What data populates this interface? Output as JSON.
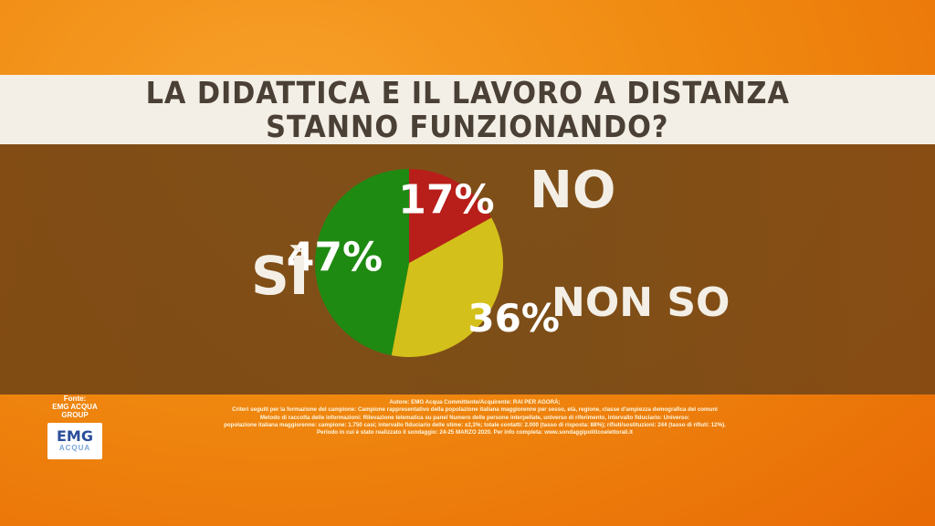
{
  "title": {
    "line1": "LA DIDATTICA E IL LAVORO A DISTANZA",
    "line2": "STANNO FUNZIONANDO?"
  },
  "chart_data": {
    "type": "pie",
    "categories": [
      "NO",
      "NON SO",
      "SÌ"
    ],
    "values": [
      17,
      36,
      47
    ],
    "data_labels": [
      "17%",
      "36%",
      "47%"
    ],
    "colors": [
      "#b81e1a",
      "#d4c01a",
      "#1f8a12"
    ]
  },
  "source": {
    "heading": "Fonte:",
    "company": "EMG ACQUA GROUP",
    "logo_text_top": "EMG",
    "logo_text_bottom": "ACQUA"
  },
  "notes": [
    "Autore: EMG Acqua Committente/Acquirente: RAI PER AGORÀ;",
    "Criteri seguiti per la formazione del campione: Campione rappresentativo della popolazione italiana maggiorenne per sesso, età, regione, classe d'ampiezza demografica dei comuni",
    "Metodo di raccolta delle informazioni: Rilevazione telematica su panel Numero delle persone interpellate, universo di riferimento, intervallo fiduciario: Universo:",
    "popolazione italiana maggiorenne: campione: 1.750 casi; intervallo fiduciario delle stime: ±2,3%; totale contatti: 2.000 (tasso di risposta: 88%); rifiuti/sostituzioni: 244 (tasso di rifiuti: 12%).",
    "Periodo in cui è stato realizzato il sondaggio: 24-25 MARZO 2020. Per info completa: www.sondaggipoliticoelettorali.it"
  ]
}
